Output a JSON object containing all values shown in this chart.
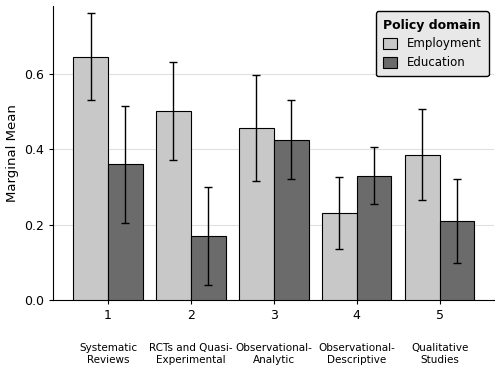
{
  "categories_num": [
    "1",
    "2",
    "3",
    "4",
    "5"
  ],
  "categories_text": [
    "Systematic\nReviews",
    "RCTs and Quasi-\nExperimental",
    "Observational-\nAnalytic",
    "Observational-\nDescriptive",
    "Qualitative\nStudies"
  ],
  "employment_means": [
    0.645,
    0.5,
    0.455,
    0.23,
    0.385
  ],
  "education_means": [
    0.36,
    0.17,
    0.425,
    0.33,
    0.21
  ],
  "employment_errors": [
    0.115,
    0.13,
    0.14,
    0.095,
    0.12
  ],
  "education_errors": [
    0.155,
    0.13,
    0.105,
    0.075,
    0.11
  ],
  "employment_color": "#c8c8c8",
  "education_color": "#6b6b6b",
  "bar_width": 0.42,
  "ylabel": "Marginal Mean",
  "ylim": [
    0.0,
    0.78
  ],
  "yticks": [
    0.0,
    0.2,
    0.4,
    0.6
  ],
  "ytick_labels": [
    "0.0",
    "0.2",
    "0.4",
    "0.6"
  ],
  "legend_title": "Policy domain",
  "legend_labels": [
    "Employment",
    "Education"
  ],
  "background_color": "#ffffff",
  "grid_color": "#e0e0e0",
  "error_capsize": 3,
  "error_linewidth": 1.0
}
